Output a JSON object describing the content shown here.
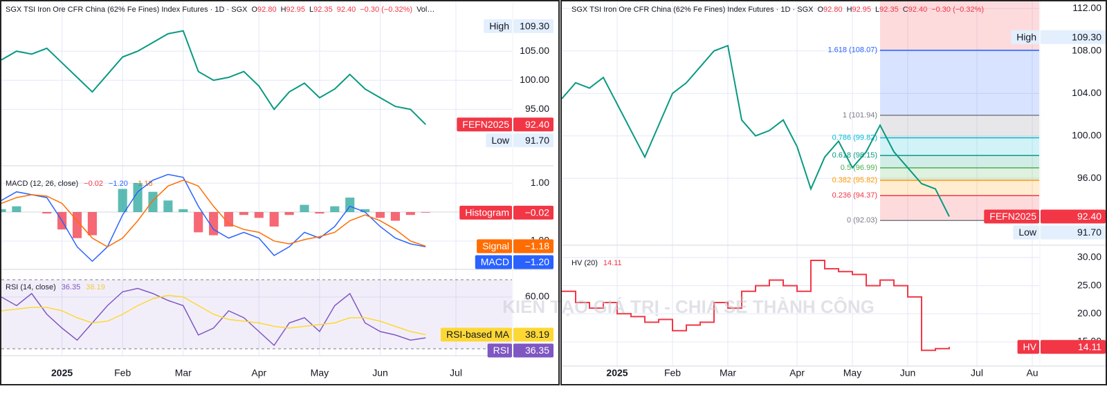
{
  "watermark": "KIÊN TẠO GIÁ TRỊ - CHIA SẺ THÀNH CÔNG",
  "chart_data": [
    {
      "type": "line",
      "header": {
        "title": "SGX TSI Iron Ore CFR China (62% Fe Fines) Index Futures · 1D · SGX",
        "quote": [
          {
            "key": "O",
            "value": "92.80"
          },
          {
            "key": "H",
            "value": "92.95"
          },
          {
            "key": "L",
            "value": "92.35"
          },
          {
            "value": "92.40"
          }
        ],
        "change": "−0.30 (−0.32%)",
        "more": "Vol…"
      },
      "categories": [
        null,
        null,
        null,
        null,
        "2025",
        null,
        null,
        null,
        "Feb",
        null,
        null,
        null,
        "Mar",
        null,
        null,
        null,
        null,
        "Apr",
        null,
        null,
        null,
        "May",
        null,
        null,
        null,
        "Jun",
        null,
        null,
        null,
        null,
        "Jul"
      ],
      "color": "#089981",
      "values": [
        103.5,
        105,
        104.5,
        105.5,
        103,
        100.5,
        98,
        101,
        104,
        105,
        106.5,
        108,
        108.5,
        101.5,
        100,
        100.5,
        101.5,
        99,
        95,
        98,
        99.5,
        97,
        98.5,
        101,
        98.5,
        97,
        95.5,
        95,
        92.4,
        null,
        null
      ],
      "ylim": [
        85.3,
        113.8
      ],
      "yticks": [
        {
          "value": 95,
          "label": "95.00"
        },
        {
          "value": 100,
          "label": "100.00"
        },
        {
          "value": 105,
          "label": "105.00"
        }
      ],
      "markers": [
        {
          "name": "High",
          "value": 109.3,
          "label": "109.30"
        },
        {
          "name": "FEFN2025",
          "value": 92.4,
          "label": "92.40",
          "color": "#f23645"
        },
        {
          "name": "Low",
          "value": 91.7,
          "label": "91.70"
        }
      ],
      "grid": true
    },
    {
      "type": "macd",
      "title": "MACD (12, 26, close)",
      "series": [
        {
          "name": "Histogram",
          "color": "#f23645",
          "positive_color": "#26a69a",
          "last_label": "−0.02",
          "values": [
            0.1,
            0.2,
            0,
            -0.05,
            -0.6,
            -0.9,
            -0.8,
            0,
            0.8,
            1.0,
            0.7,
            0.4,
            0.1,
            -0.7,
            -0.8,
            -0.5,
            -0.1,
            -0.2,
            -0.5,
            -0.1,
            0.25,
            -0.05,
            0.2,
            0.5,
            0.1,
            -0.2,
            -0.3,
            -0.1,
            -0.02,
            null,
            null
          ]
        },
        {
          "name": "MACD",
          "color": "#2962ff",
          "last_label": "−1.20",
          "values": [
            0.4,
            0.7,
            0.6,
            0.5,
            -0.3,
            -1.2,
            -1.7,
            -1.2,
            -0.1,
            0.7,
            1.1,
            1.3,
            1.2,
            0.2,
            -0.6,
            -0.9,
            -0.7,
            -0.9,
            -1.5,
            -1.2,
            -0.7,
            -0.9,
            -0.5,
            0.2,
            0,
            -0.5,
            -0.9,
            -1.1,
            -1.2,
            null,
            null
          ]
        },
        {
          "name": "Signal",
          "color": "#ff6d00",
          "last_label": "−1.18",
          "values": [
            0.3,
            0.5,
            0.6,
            0.55,
            0.3,
            -0.3,
            -0.9,
            -1.2,
            -0.9,
            -0.3,
            0.4,
            0.9,
            1.1,
            0.9,
            0.2,
            -0.4,
            -0.6,
            -0.7,
            -1,
            -1.1,
            -0.95,
            -0.85,
            -0.7,
            -0.3,
            -0.1,
            -0.3,
            -0.6,
            -1,
            -1.18,
            null,
            null
          ]
        }
      ],
      "ylim": [
        -1.98,
        1.6
      ],
      "yticks": [
        {
          "value": 1,
          "label": "1.00"
        },
        {
          "value": -1,
          "label": "−1.00"
        }
      ],
      "grid": true
    },
    {
      "type": "rsi",
      "title": "RSI (14, close)",
      "series": [
        {
          "name": "RSI",
          "color": "#7e57c2",
          "values": [
            60,
            55,
            62,
            50,
            42,
            35,
            45,
            55,
            63,
            65,
            62,
            58,
            55,
            38,
            42,
            52,
            48,
            40,
            32,
            45,
            48,
            40,
            55,
            62,
            45,
            40,
            38,
            35,
            36.35,
            null,
            null
          ]
        },
        {
          "name": "RSI-based MA",
          "color": "#fdd835",
          "values": [
            52,
            53,
            54,
            54,
            52,
            48,
            45,
            46,
            50,
            55,
            59,
            61,
            60,
            55,
            50,
            47,
            46,
            45,
            43,
            42,
            43,
            44,
            45,
            48,
            48,
            46,
            43,
            40,
            38.19,
            null,
            null
          ]
        }
      ],
      "bands": [
        30,
        70
      ],
      "ylim": [
        26,
        76
      ],
      "yticks": [
        {
          "value": 60,
          "label": "60.00"
        }
      ],
      "grid": true
    },
    {
      "type": "line",
      "header": {
        "title": "SGX TSI Iron Ore CFR China (62% Fe Fines) Index Futures · 1D · SGX",
        "quote": [
          {
            "key": "O",
            "value": "92.80"
          },
          {
            "key": "H",
            "value": "92.95"
          },
          {
            "key": "L",
            "value": "92.35"
          },
          {
            "key": "C",
            "value": "92.40"
          }
        ],
        "change": "−0.30 (−0.32%)"
      },
      "categories": [
        null,
        null,
        null,
        null,
        "2025",
        null,
        null,
        null,
        "Feb",
        null,
        null,
        null,
        "Mar",
        null,
        null,
        null,
        null,
        "Apr",
        null,
        null,
        null,
        "May",
        null,
        null,
        null,
        "Jun",
        null,
        null,
        null,
        null,
        "Jul",
        null,
        null,
        null,
        "Au"
      ],
      "color": "#089981",
      "values": [
        103.5,
        105,
        104.5,
        105.5,
        103,
        100.5,
        98,
        101,
        104,
        105,
        106.5,
        108,
        108.5,
        101.5,
        100,
        100.5,
        101.5,
        99,
        95,
        98,
        99.5,
        97,
        98.5,
        101,
        98.5,
        97,
        95.5,
        95,
        92.4,
        null,
        null,
        null,
        null,
        null,
        null
      ],
      "ylim": [
        89.7,
        112.8
      ],
      "yticks": [
        {
          "value": 96,
          "label": "96.00"
        },
        {
          "value": 100,
          "label": "100.00"
        },
        {
          "value": 104,
          "label": "104.00"
        },
        {
          "value": 108,
          "label": "108.00"
        },
        {
          "value": 112,
          "label": "112.00"
        }
      ],
      "fib": [
        {
          "value": 108.07,
          "label": "1.618 (108.07)",
          "color": "#2962ff"
        },
        {
          "value": 101.94,
          "label": "1 (101.94)",
          "color": "#787b86"
        },
        {
          "value": 99.82,
          "label": "0.786 (99.82)",
          "color": "#00bcd4"
        },
        {
          "value": 98.15,
          "label": "0.618 (98.15)",
          "color": "#089981"
        },
        {
          "value": 96.99,
          "label": "0.5 (96.99)",
          "color": "#4caf50"
        },
        {
          "value": 95.82,
          "label": "0.382 (95.82)",
          "color": "#ff9800"
        },
        {
          "value": 94.37,
          "label": "0.236 (94.37)",
          "color": "#f23645"
        },
        {
          "value": 92.03,
          "label": "0 (92.03)",
          "color": "#787b86"
        }
      ],
      "markers": [
        {
          "name": "High",
          "value": 109.3,
          "label": "109.30"
        },
        {
          "name": "FEFN2025",
          "value": 92.4,
          "label": "92.40",
          "color": "#f23645"
        },
        {
          "name": "Low",
          "value": 91.7,
          "label": "91.70"
        }
      ],
      "grid": true
    },
    {
      "type": "step",
      "title": "HV (20)",
      "series": [
        {
          "name": "HV",
          "color": "#f23645",
          "values": [
            24,
            22,
            21,
            22,
            20,
            19.5,
            18.5,
            19,
            17,
            18,
            18.5,
            22,
            21,
            24,
            25,
            26,
            25,
            24,
            29.5,
            28,
            27.5,
            27,
            25,
            26,
            25,
            23,
            13.5,
            13.8,
            14.11,
            null,
            null,
            null,
            null,
            null,
            null
          ]
        }
      ],
      "ylim": [
        10.7,
        32.2
      ],
      "yticks": [
        {
          "value": 30,
          "label": "30.00"
        },
        {
          "value": 25,
          "label": "25.00"
        },
        {
          "value": 20,
          "label": "20.00"
        },
        {
          "value": 15,
          "label": "15.00"
        }
      ],
      "grid": true
    }
  ]
}
